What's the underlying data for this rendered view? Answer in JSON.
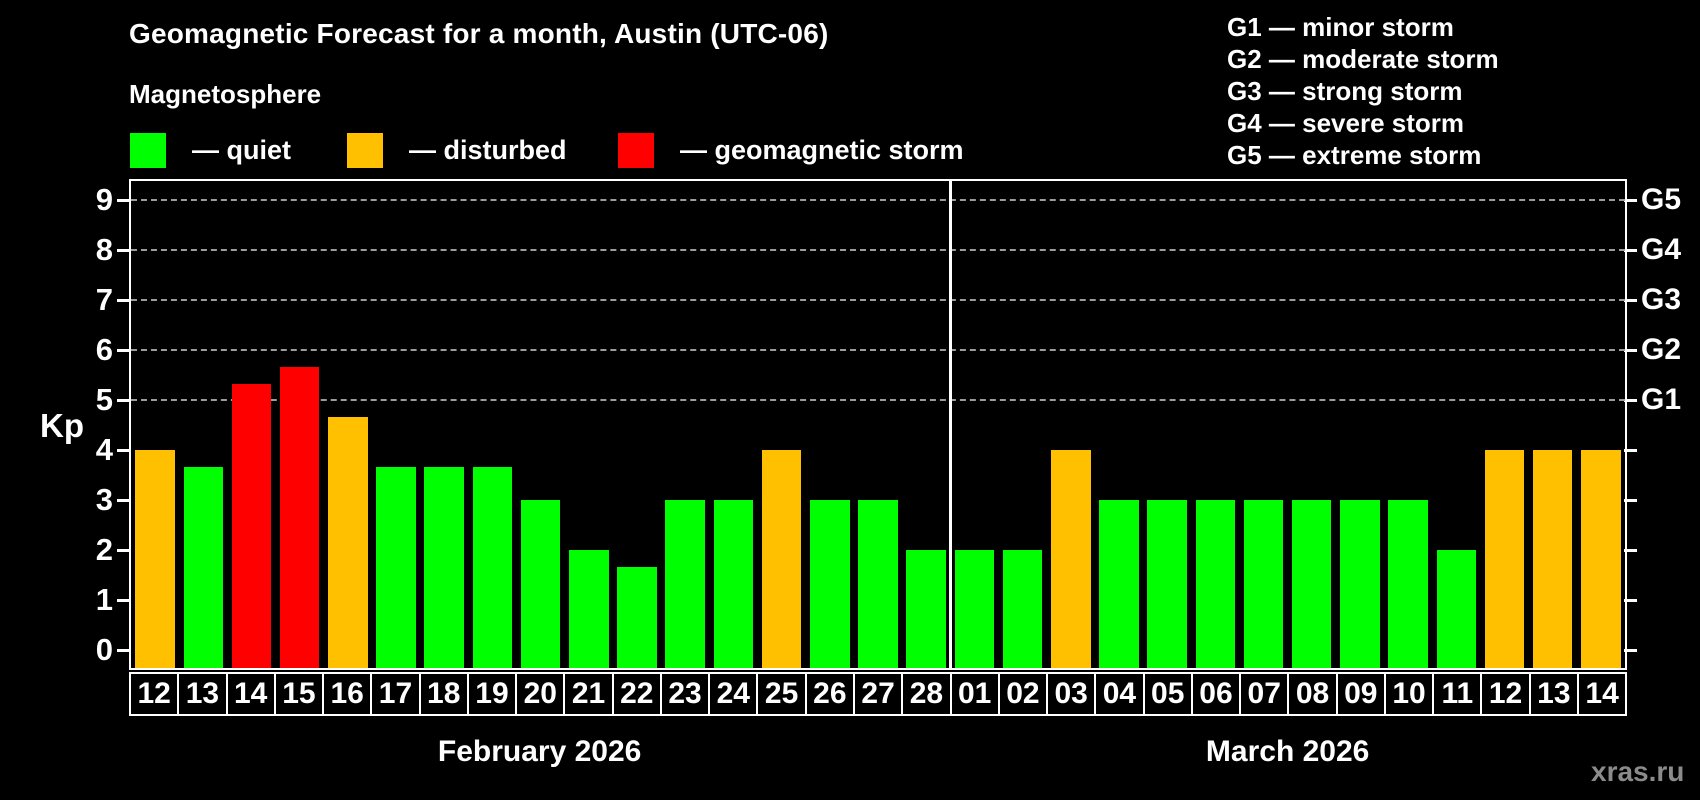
{
  "title": "Geomagnetic Forecast for a month, Austin (UTC-06)",
  "subtitle": "Magnetosphere",
  "legend": {
    "items": [
      {
        "name": "quiet",
        "label": "— quiet",
        "color": "#00ff00",
        "x": 130
      },
      {
        "name": "disturbed",
        "label": "— disturbed",
        "color": "#ffc000",
        "x": 347
      },
      {
        "name": "storm",
        "label": "— geomagnetic storm",
        "color": "#ff0000",
        "x": 618
      }
    ]
  },
  "g_legend": {
    "items": [
      {
        "code": "G1",
        "label": "G1 — minor storm"
      },
      {
        "code": "G2",
        "label": "G2 — moderate storm"
      },
      {
        "code": "G3",
        "label": "G3 — strong storm"
      },
      {
        "code": "G4",
        "label": "G4 — severe storm"
      },
      {
        "code": "G5",
        "label": "G5 — extreme storm"
      }
    ]
  },
  "axis": {
    "kp_label": "Kp",
    "left_ticks": [
      "9",
      "8",
      "7",
      "6",
      "5",
      "4",
      "3",
      "2",
      "1",
      "0"
    ],
    "right_labels": [
      {
        "code": "G5",
        "kp": 9
      },
      {
        "code": "G4",
        "kp": 8
      },
      {
        "code": "G3",
        "kp": 7
      },
      {
        "code": "G2",
        "kp": 6
      },
      {
        "code": "G1",
        "kp": 5
      }
    ]
  },
  "chart_data": {
    "type": "bar",
    "ylabel": "Kp",
    "ylim": [
      0,
      9
    ],
    "grid": "dashed horizontal at Kp 5-9 (G1-G5)",
    "legend_position": "top",
    "months": [
      {
        "label": "February 2026",
        "days": [
          "12",
          "13",
          "14",
          "15",
          "16",
          "17",
          "18",
          "19",
          "20",
          "21",
          "22",
          "23",
          "24",
          "25",
          "26",
          "27",
          "28"
        ],
        "values": [
          4,
          3.67,
          5.33,
          5.67,
          4.67,
          3.67,
          3.67,
          3.67,
          3,
          2,
          1.67,
          3,
          3,
          4,
          3,
          3,
          2
        ],
        "status": [
          "disturbed",
          "quiet",
          "storm",
          "storm",
          "disturbed",
          "quiet",
          "quiet",
          "quiet",
          "quiet",
          "quiet",
          "quiet",
          "quiet",
          "quiet",
          "disturbed",
          "quiet",
          "quiet",
          "quiet"
        ]
      },
      {
        "label": "March 2026",
        "days": [
          "01",
          "02",
          "03",
          "04",
          "05",
          "06",
          "07",
          "08",
          "09",
          "10",
          "11",
          "12",
          "13",
          "14"
        ],
        "values": [
          2,
          2,
          4,
          3,
          3,
          3,
          3,
          3,
          3,
          3,
          2,
          4,
          4,
          4
        ],
        "status": [
          "quiet",
          "quiet",
          "disturbed",
          "quiet",
          "quiet",
          "quiet",
          "quiet",
          "quiet",
          "quiet",
          "quiet",
          "quiet",
          "disturbed",
          "disturbed",
          "disturbed"
        ]
      }
    ]
  },
  "colors": {
    "quiet": "#00ff00",
    "disturbed": "#ffc000",
    "storm": "#ff0000",
    "grid": "#9c9c9c",
    "axis": "#ffffff",
    "background": "#000000",
    "watermark": "#8b8b8b"
  },
  "watermark": "xras.ru"
}
